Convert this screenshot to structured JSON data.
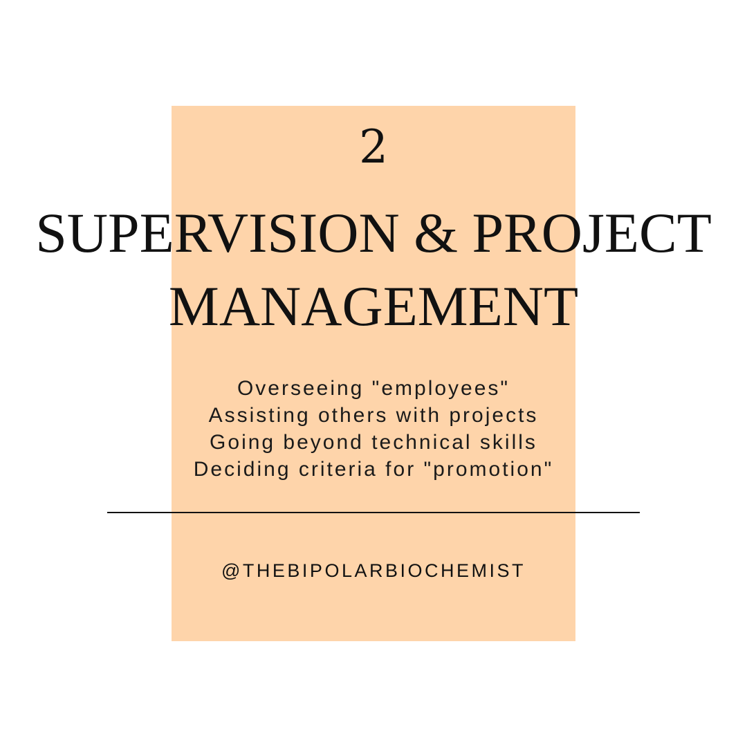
{
  "slide": {
    "number": "2",
    "title_lines": [
      "SUPERVISION & PROJECT",
      "MANAGEMENT"
    ],
    "points": [
      "Overseeing \"employees\"",
      "Assisting others with projects",
      "Going beyond technical skills",
      "Deciding criteria for \"promotion\""
    ],
    "handle": "@THEBIPOLARBIOCHEMIST"
  },
  "colors": {
    "background": "#ffffff",
    "accent_block": "#fed4aa",
    "text": "#111111"
  }
}
